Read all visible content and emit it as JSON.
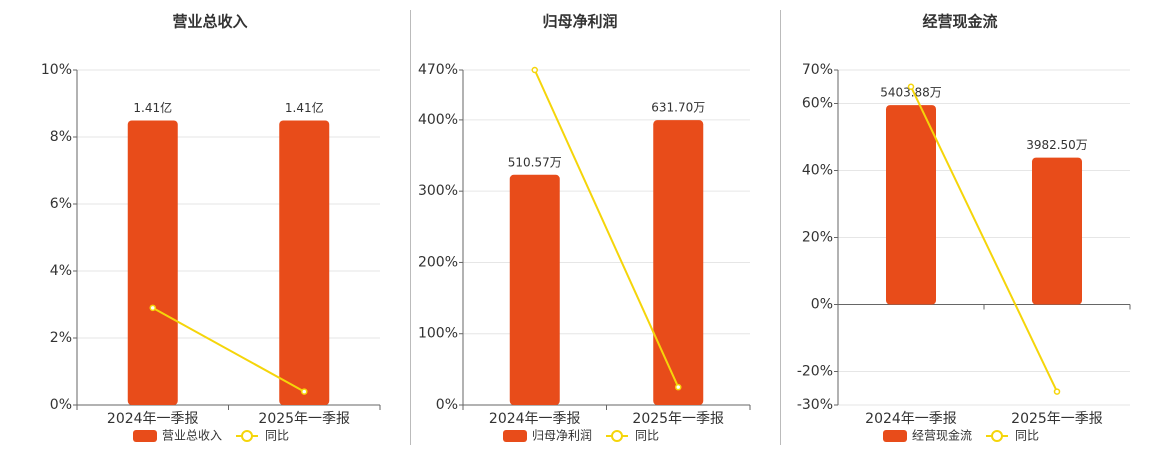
{
  "chart_data": [
    {
      "type": "bar",
      "title": "营业总收入",
      "categories": [
        "2024年一季报",
        "2025年一季报"
      ],
      "series": [
        {
          "name": "营业总收入",
          "type": "bar",
          "axis": "y2",
          "color": "#e84c1a",
          "values": [
            1.41,
            1.41
          ],
          "value_labels": [
            "1.41亿",
            "1.41亿"
          ]
        },
        {
          "name": "同比",
          "type": "line",
          "axis": "y",
          "color": "#f5d50a",
          "values": [
            2.9,
            0.4
          ]
        }
      ],
      "ylim": [
        0,
        10
      ],
      "yticks": [
        {
          "value": 0,
          "label": "0%"
        },
        {
          "value": 2,
          "label": "2%"
        },
        {
          "value": 4,
          "label": "4%"
        },
        {
          "value": 6,
          "label": "6%"
        },
        {
          "value": 8,
          "label": "8%"
        },
        {
          "value": 10,
          "label": "10%"
        }
      ],
      "y2lim": [
        0,
        1.66
      ],
      "grid": true
    },
    {
      "type": "bar",
      "title": "归母净利润",
      "categories": [
        "2024年一季报",
        "2025年一季报"
      ],
      "series": [
        {
          "name": "归母净利润",
          "type": "bar",
          "axis": "y2",
          "color": "#e84c1a",
          "values": [
            510.57,
            631.7
          ],
          "value_labels": [
            "510.57万",
            "631.70万"
          ]
        },
        {
          "name": "同比",
          "type": "line",
          "axis": "y",
          "color": "#f5d50a",
          "values": [
            470,
            25
          ]
        }
      ],
      "ylim": [
        0,
        470
      ],
      "yticks": [
        {
          "value": 0,
          "label": "0%"
        },
        {
          "value": 100,
          "label": "100%"
        },
        {
          "value": 200,
          "label": "200%"
        },
        {
          "value": 300,
          "label": "300%"
        },
        {
          "value": 400,
          "label": "400%"
        },
        {
          "value": 470,
          "label": "470%"
        }
      ],
      "y2lim": [
        0,
        743
      ],
      "grid": true
    },
    {
      "type": "bar",
      "title": "经营现金流",
      "categories": [
        "2024年一季报",
        "2025年一季报"
      ],
      "series": [
        {
          "name": "经营现金流",
          "type": "bar",
          "axis": "y2",
          "color": "#e84c1a",
          "values": [
            5403.88,
            3982.5
          ],
          "value_labels": [
            "5403.88万",
            "3982.50万"
          ]
        },
        {
          "name": "同比",
          "type": "line",
          "axis": "y",
          "color": "#f5d50a",
          "values": [
            65,
            -26
          ]
        }
      ],
      "ylim": [
        -30,
        70
      ],
      "yticks": [
        {
          "value": -30,
          "label": "-30%"
        },
        {
          "value": -20,
          "label": "-20%"
        },
        {
          "value": 0,
          "label": "0%"
        },
        {
          "value": 20,
          "label": "20%"
        },
        {
          "value": 40,
          "label": "40%"
        },
        {
          "value": 60,
          "label": "60%"
        },
        {
          "value": 70,
          "label": "70%"
        }
      ],
      "y2lim": [
        -2724,
        6356
      ],
      "grid": true
    }
  ]
}
